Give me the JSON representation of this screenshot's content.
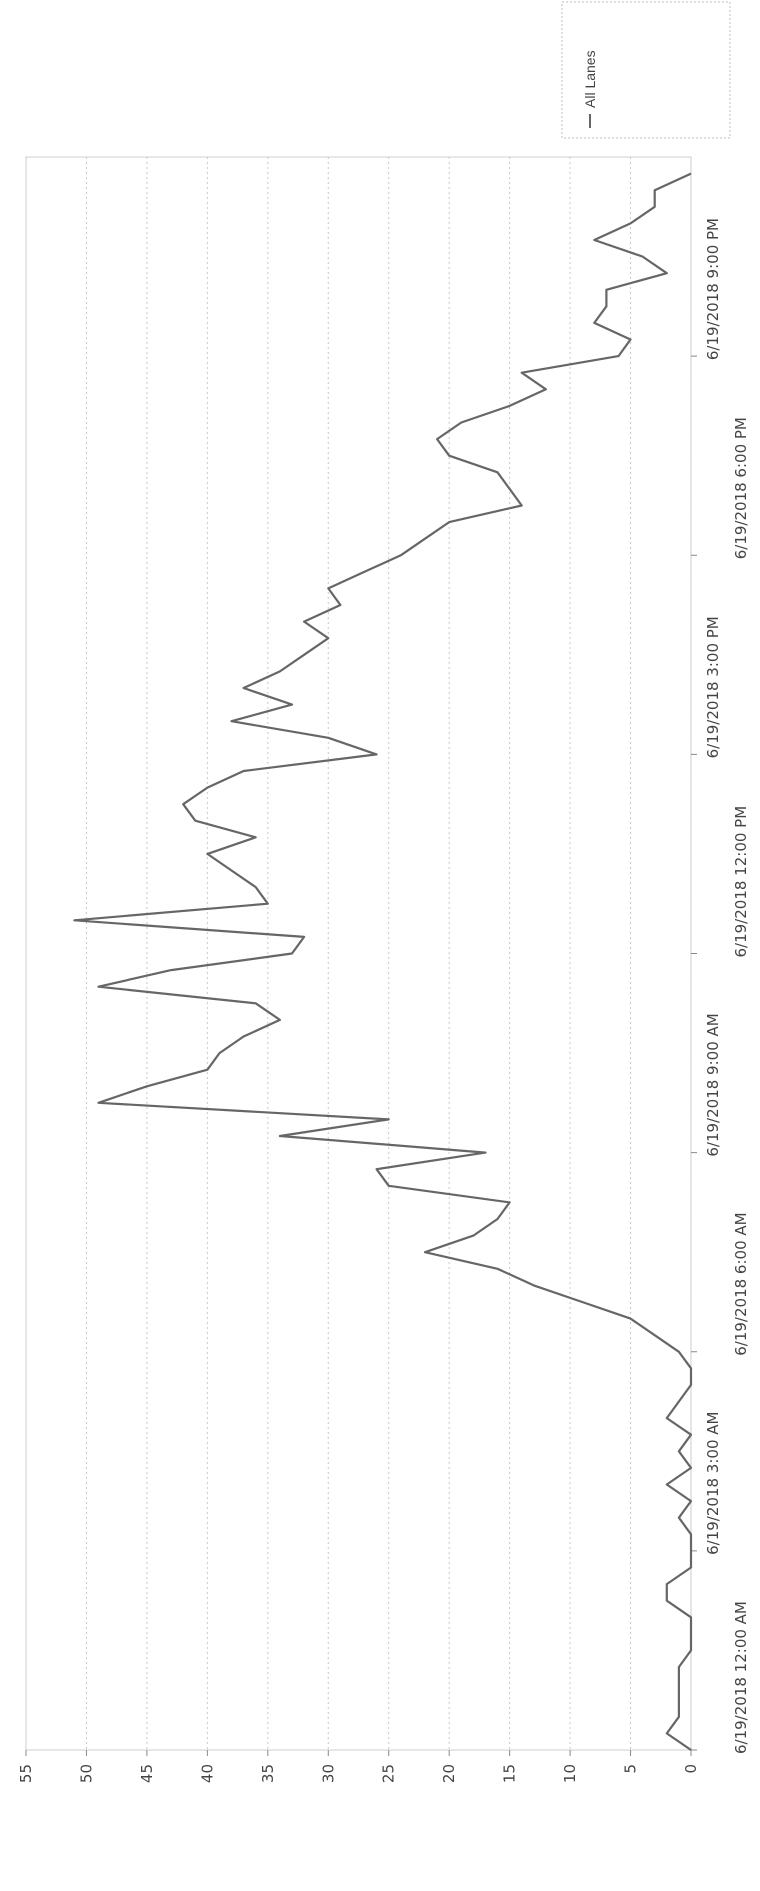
{
  "chart_data": {
    "type": "line",
    "title": "",
    "xlabel": "",
    "ylabel": "",
    "ylim": [
      0,
      55
    ],
    "y_ticks": [
      0,
      5,
      10,
      15,
      20,
      25,
      30,
      35,
      40,
      45,
      50,
      55
    ],
    "y_tick_labels": [
      "0",
      "5",
      "10",
      "15",
      "20",
      "25",
      "30",
      "35",
      "40",
      "45",
      "50",
      "55"
    ],
    "xlim_hours": [
      0,
      24
    ],
    "x_ticks_hours": [
      0,
      3,
      6,
      9,
      12,
      15,
      18,
      21
    ],
    "x_tick_labels": [
      "6/19/2018 12:00 AM",
      "6/19/2018 3:00 AM",
      "6/19/2018 6:00 AM",
      "6/19/2018 9:00 AM",
      "6/19/2018 12:00 PM",
      "6/19/2018 3:00 PM",
      "6/19/2018 6:00 PM",
      "6/19/2018 9:00 PM"
    ],
    "grid": true,
    "legend_position": "top-right",
    "series": [
      {
        "name": "All Lanes",
        "color": "#666666",
        "points": [
          [
            0,
            0
          ],
          [
            0.25,
            2
          ],
          [
            0.5,
            1
          ],
          [
            1.25,
            1
          ],
          [
            1.5,
            0
          ],
          [
            2,
            0
          ],
          [
            2.25,
            2
          ],
          [
            2.5,
            2
          ],
          [
            2.75,
            0
          ],
          [
            3.25,
            0
          ],
          [
            3.5,
            1
          ],
          [
            3.75,
            0
          ],
          [
            4,
            2
          ],
          [
            4.25,
            0
          ],
          [
            4.5,
            1
          ],
          [
            4.75,
            0
          ],
          [
            5,
            2
          ],
          [
            5.25,
            1
          ],
          [
            5.5,
            0
          ],
          [
            5.75,
            0
          ],
          [
            6,
            1
          ],
          [
            6.25,
            3
          ],
          [
            6.5,
            5
          ],
          [
            6.75,
            9
          ],
          [
            7,
            13
          ],
          [
            7.25,
            16
          ],
          [
            7.5,
            22
          ],
          [
            7.75,
            18
          ],
          [
            8,
            16
          ],
          [
            8.25,
            15
          ],
          [
            8.5,
            25
          ],
          [
            8.75,
            26
          ],
          [
            9,
            17
          ],
          [
            9.25,
            34
          ],
          [
            9.5,
            25
          ],
          [
            9.75,
            49
          ],
          [
            10,
            45
          ],
          [
            10.25,
            40
          ],
          [
            10.5,
            39
          ],
          [
            10.75,
            37
          ],
          [
            11,
            34
          ],
          [
            11.25,
            36
          ],
          [
            11.5,
            49
          ],
          [
            11.75,
            43
          ],
          [
            12,
            33
          ],
          [
            12.25,
            32
          ],
          [
            12.5,
            51
          ],
          [
            12.75,
            35
          ],
          [
            13,
            36
          ],
          [
            13.25,
            38
          ],
          [
            13.5,
            40
          ],
          [
            13.75,
            36
          ],
          [
            14,
            41
          ],
          [
            14.25,
            42
          ],
          [
            14.5,
            40
          ],
          [
            14.75,
            37
          ],
          [
            15,
            26
          ],
          [
            15.25,
            30
          ],
          [
            15.5,
            38
          ],
          [
            15.75,
            33
          ],
          [
            16,
            37
          ],
          [
            16.25,
            34
          ],
          [
            16.5,
            32
          ],
          [
            16.75,
            30
          ],
          [
            17,
            32
          ],
          [
            17.25,
            29
          ],
          [
            17.5,
            30
          ],
          [
            17.75,
            27
          ],
          [
            18,
            24
          ],
          [
            18.25,
            22
          ],
          [
            18.5,
            20
          ],
          [
            18.75,
            14
          ],
          [
            19,
            15
          ],
          [
            19.25,
            16
          ],
          [
            19.5,
            20
          ],
          [
            19.75,
            21
          ],
          [
            20,
            19
          ],
          [
            20.25,
            15
          ],
          [
            20.5,
            12
          ],
          [
            20.75,
            14
          ],
          [
            21,
            6
          ],
          [
            21.25,
            5
          ],
          [
            21.5,
            8
          ],
          [
            21.75,
            7
          ],
          [
            22,
            7
          ],
          [
            22.25,
            2
          ],
          [
            22.5,
            4
          ],
          [
            22.75,
            8
          ],
          [
            23,
            5
          ],
          [
            23.25,
            3
          ],
          [
            23.5,
            3
          ],
          [
            23.75,
            0
          ]
        ]
      }
    ]
  }
}
